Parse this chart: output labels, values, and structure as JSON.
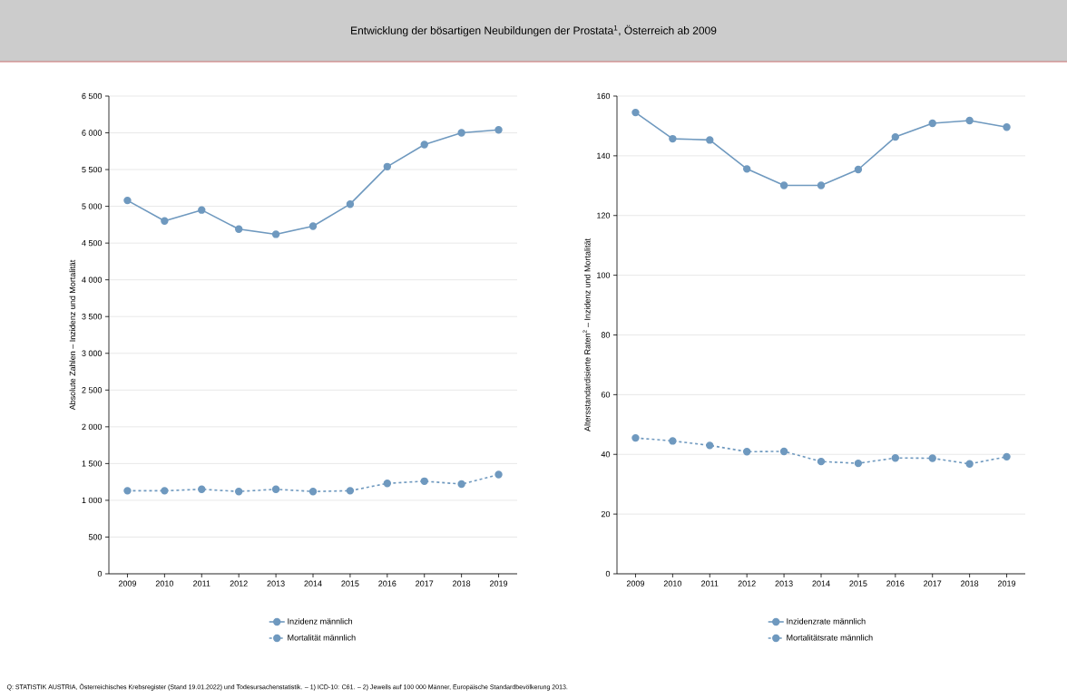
{
  "chart_data": [
    {
      "type": "line",
      "title": "Entwicklung der bösartigen Neubildungen der Prostata$^{1}$, Österreich ab 2009",
      "categories": [
        "2009",
        "2010",
        "2011",
        "2012",
        "2013",
        "2014",
        "2015",
        "2016",
        "2017",
        "2018",
        "2019"
      ],
      "series": [
        {
          "name": "Inzidenz männlich",
          "color": "#6f99bf",
          "line_style": "solid",
          "values": [
            5080,
            4800,
            4950,
            4690,
            4620,
            4730,
            5030,
            5540,
            5840,
            6000,
            6040
          ]
        },
        {
          "name": "Mortalität männlich",
          "color": "#6f99bf",
          "line_style": "dashed",
          "values": [
            1130,
            1130,
            1150,
            1120,
            1150,
            1120,
            1130,
            1230,
            1260,
            1220,
            1350
          ]
        }
      ],
      "ylabel": "Absolute  Zahlen – Inzidenz und Mortalität",
      "ylim": [
        0,
        6500
      ],
      "yticks": [
        0,
        500,
        {
          "value": 1000,
          "label": "1 000"
        },
        {
          "value": 1500,
          "label": "1 500"
        },
        {
          "value": 2000,
          "label": "2 000"
        },
        {
          "value": 2500,
          "label": "2 500"
        },
        {
          "value": 3000,
          "label": "3 000"
        },
        {
          "value": 3500,
          "label": "3 500"
        },
        {
          "value": 4000,
          "label": "4 000"
        },
        {
          "value": 4500,
          "label": "4 500"
        },
        {
          "value": 5000,
          "label": "5 000"
        },
        {
          "value": 5500,
          "label": "5 500"
        },
        {
          "value": 6000,
          "label": "6 000"
        },
        {
          "value": 6500,
          "label": "6 500"
        }
      ],
      "grid": "y",
      "legend": "bottom",
      "marker": "circle",
      "annotations": [
        "Q: STATISTIK AUSTRIA, Österreichisches Krebsregister (Stand 19.01.2022) und Todesursachenstatistik. – 1) ICD-10: C61. – 2) Jeweils auf 100 000 Männer, Europäische Standardbevölkerung 2013."
      ]
    },
    {
      "type": "line",
      "categories": [
        "2009",
        "2010",
        "2011",
        "2012",
        "2013",
        "2014",
        "2015",
        "2016",
        "2017",
        "2018",
        "2019"
      ],
      "series": [
        {
          "name": "Inzidenzrate männlich",
          "color": "#6f99bf",
          "line_style": "solid",
          "values": [
            154.5,
            145.7,
            145.3,
            135.6,
            130.1,
            130.1,
            135.4,
            146.3,
            150.9,
            151.8,
            149.6
          ]
        },
        {
          "name": "Mortalitätsrate männlich",
          "color": "#6f99bf",
          "line_style": "dashed",
          "values": [
            45.5,
            44.5,
            43.0,
            40.9,
            41.0,
            37.6,
            37.0,
            38.8,
            38.7,
            36.8,
            39.2
          ]
        }
      ],
      "ylabel": "Altersstandardisierte Raten$^{2}$ – Inzidenz und Mortalität",
      "ylim": [
        0,
        160
      ],
      "yticks": [
        0,
        20,
        40,
        60,
        80,
        100,
        120,
        140,
        160
      ],
      "grid": "y",
      "legend": "bottom",
      "marker": "circle"
    }
  ]
}
